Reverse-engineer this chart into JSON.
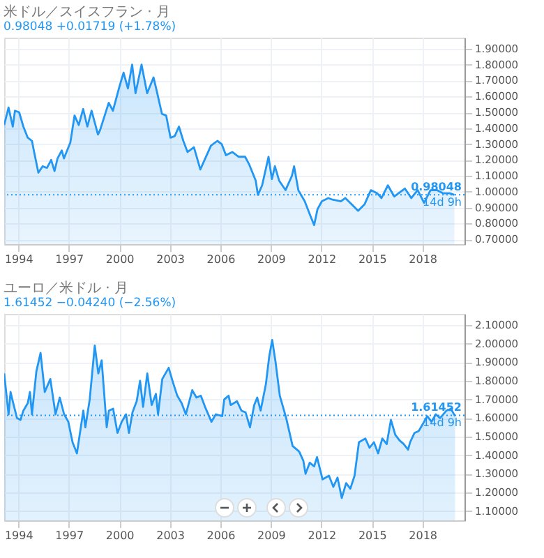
{
  "chart_data": [
    {
      "type": "area",
      "title": "米ドル／スイスフラン · 月",
      "subtitle": "0.98048 +0.01719 (+1.78%)",
      "annotations": [
        "14d 9h"
      ],
      "x": [
        1993.16,
        1993.42,
        1993.67,
        1993.8,
        1994.05,
        1994.3,
        1994.56,
        1994.81,
        1994.94,
        1995.19,
        1995.44,
        1995.7,
        1995.95,
        1996.15,
        1996.33,
        1996.58,
        1996.71,
        1997.09,
        1997.34,
        1997.59,
        1997.85,
        1998.1,
        1998.35,
        1998.73,
        1998.86,
        1999.37,
        1999.62,
        2000.0,
        2000.25,
        2000.51,
        2000.76,
        2000.96,
        2001.32,
        2001.65,
        2002.03,
        2002.23,
        2002.53,
        2002.78,
        2003.04,
        2003.29,
        2003.54,
        2003.8,
        2004.05,
        2004.43,
        2004.81,
        2005.06,
        2005.44,
        2005.82,
        2006.08,
        2006.33,
        2006.71,
        2007.09,
        2007.47,
        2007.72,
        2008.1,
        2008.23,
        2008.48,
        2008.86,
        2009.06,
        2009.24,
        2009.49,
        2009.87,
        2010.25,
        2010.38,
        2010.63,
        2011.01,
        2011.34,
        2011.57,
        2011.77,
        2012.03,
        2012.41,
        2012.66,
        2013.16,
        2013.42,
        2013.8,
        2014.18,
        2014.56,
        2014.94,
        2015.32,
        2015.57,
        2015.95,
        2016.33,
        2016.58,
        2016.96,
        2017.34,
        2017.72,
        2018.1,
        2018.48,
        2018.86,
        2019.24,
        2019.62,
        2019.9
      ],
      "series": [
        {
          "color": "#2196f3",
          "values": [
            1.42,
            1.53,
            1.41,
            1.51,
            1.5,
            1.41,
            1.34,
            1.32,
            1.25,
            1.12,
            1.16,
            1.15,
            1.2,
            1.13,
            1.21,
            1.26,
            1.21,
            1.31,
            1.48,
            1.42,
            1.52,
            1.41,
            1.51,
            1.36,
            1.39,
            1.56,
            1.51,
            1.66,
            1.75,
            1.65,
            1.8,
            1.62,
            1.8,
            1.62,
            1.72,
            1.63,
            1.49,
            1.48,
            1.34,
            1.35,
            1.41,
            1.32,
            1.25,
            1.28,
            1.14,
            1.2,
            1.29,
            1.32,
            1.3,
            1.23,
            1.25,
            1.22,
            1.22,
            1.17,
            1.07,
            0.98,
            1.04,
            1.22,
            1.08,
            1.16,
            1.07,
            1.01,
            1.1,
            1.16,
            1.01,
            0.94,
            0.85,
            0.79,
            0.89,
            0.94,
            0.96,
            0.95,
            0.94,
            0.96,
            0.92,
            0.88,
            0.92,
            1.01,
            0.99,
            0.96,
            1.04,
            0.97,
            0.99,
            1.02,
            0.96,
            1.01,
            0.93,
            1.01,
            1.01,
            0.99,
            0.99,
            0.98
          ]
        }
      ],
      "ref_lines": [
        {
          "axis": "y",
          "value": 0.98048,
          "label": "0.98048",
          "color": "#2196f3",
          "line_style": "dotted"
        }
      ],
      "xlim": [
        1993.16,
        2020.5
      ],
      "xticks": [
        1994,
        1997,
        2000,
        2003,
        2006,
        2009,
        2012,
        2015,
        2018
      ],
      "ylim": [
        0.67,
        1.97
      ],
      "yticks": [
        {
          "value": 0.7,
          "label": "0.70000"
        },
        {
          "value": 0.8,
          "label": "0.80000"
        },
        {
          "value": 0.9,
          "label": "0.90000"
        },
        {
          "value": 1.0,
          "label": "1.00000"
        },
        {
          "value": 1.1,
          "label": "1.10000"
        },
        {
          "value": 1.2,
          "label": "1.20000"
        },
        {
          "value": 1.3,
          "label": "1.30000"
        },
        {
          "value": 1.4,
          "label": "1.40000"
        },
        {
          "value": 1.5,
          "label": "1.50000"
        },
        {
          "value": 1.6,
          "label": "1.60000"
        },
        {
          "value": 1.7,
          "label": "1.70000"
        },
        {
          "value": 1.8,
          "label": "1.80000"
        },
        {
          "value": 1.9,
          "label": "1.90000"
        }
      ],
      "grid": true
    },
    {
      "type": "area",
      "title": "ユーロ／米ドル · 月",
      "subtitle": "1.61452 −0.04240 (−2.56%)",
      "annotations": [
        "14d 9h"
      ],
      "x": [
        1993.16,
        1993.42,
        1993.54,
        1993.67,
        1993.92,
        1994.13,
        1994.3,
        1994.56,
        1994.69,
        1994.81,
        1995.07,
        1995.32,
        1995.57,
        1995.9,
        1996.21,
        1996.46,
        1996.72,
        1996.97,
        1997.22,
        1997.48,
        1997.86,
        1997.98,
        1998.24,
        1998.54,
        1998.75,
        1998.95,
        1999.25,
        1999.38,
        1999.63,
        1999.89,
        2000.14,
        2000.4,
        2000.57,
        2000.78,
        2001.03,
        2001.23,
        2001.41,
        2001.66,
        2001.92,
        2002.17,
        2002.3,
        2002.55,
        2002.93,
        2003.19,
        2003.44,
        2003.7,
        2003.95,
        2004.33,
        2004.58,
        2004.84,
        2005.09,
        2005.47,
        2005.73,
        2006.11,
        2006.23,
        2006.49,
        2006.61,
        2006.99,
        2007.25,
        2007.5,
        2007.76,
        2008.01,
        2008.19,
        2008.39,
        2008.7,
        2008.9,
        2009.08,
        2009.28,
        2009.53,
        2009.91,
        2010.29,
        2010.68,
        2010.93,
        2011.06,
        2011.31,
        2011.57,
        2011.74,
        2012.07,
        2012.45,
        2012.71,
        2012.96,
        2013.21,
        2013.47,
        2013.72,
        2013.97,
        2014.23,
        2014.61,
        2014.86,
        2015.12,
        2015.37,
        2015.62,
        2015.88,
        2016.13,
        2016.39,
        2016.64,
        2016.89,
        2017.15,
        2017.27,
        2017.53,
        2017.78,
        2018.04,
        2018.29,
        2018.54,
        2018.8,
        2019.05,
        2019.43,
        2019.69,
        2019.94
      ],
      "series": [
        {
          "color": "#2196f3",
          "values": [
            1.84,
            1.62,
            1.74,
            1.69,
            1.6,
            1.59,
            1.64,
            1.68,
            1.74,
            1.62,
            1.85,
            1.95,
            1.74,
            1.81,
            1.62,
            1.71,
            1.62,
            1.58,
            1.47,
            1.41,
            1.64,
            1.55,
            1.7,
            1.99,
            1.84,
            1.91,
            1.55,
            1.64,
            1.65,
            1.52,
            1.58,
            1.62,
            1.52,
            1.63,
            1.69,
            1.8,
            1.66,
            1.84,
            1.67,
            1.73,
            1.62,
            1.81,
            1.87,
            1.79,
            1.72,
            1.68,
            1.62,
            1.75,
            1.71,
            1.72,
            1.66,
            1.58,
            1.62,
            1.61,
            1.7,
            1.72,
            1.67,
            1.69,
            1.64,
            1.63,
            1.55,
            1.67,
            1.71,
            1.64,
            1.78,
            1.93,
            2.02,
            1.9,
            1.72,
            1.6,
            1.45,
            1.42,
            1.37,
            1.3,
            1.36,
            1.34,
            1.39,
            1.27,
            1.29,
            1.23,
            1.28,
            1.17,
            1.25,
            1.22,
            1.29,
            1.47,
            1.49,
            1.44,
            1.47,
            1.41,
            1.49,
            1.46,
            1.59,
            1.51,
            1.48,
            1.46,
            1.43,
            1.47,
            1.52,
            1.53,
            1.57,
            1.61,
            1.58,
            1.62,
            1.6,
            1.64,
            1.65,
            1.61
          ]
        }
      ],
      "ref_lines": [
        {
          "axis": "y",
          "value": 1.61452,
          "label": "1.61452",
          "color": "#2196f3",
          "line_style": "dotted"
        }
      ],
      "xlim": [
        1993.16,
        2020.5
      ],
      "xticks": [
        1994,
        1997,
        2000,
        2003,
        2006,
        2009,
        2012,
        2015,
        2018
      ],
      "ylim": [
        1.05,
        2.16
      ],
      "yticks": [
        {
          "value": 1.1,
          "label": "1.10000"
        },
        {
          "value": 1.2,
          "label": "1.20000"
        },
        {
          "value": 1.3,
          "label": "1.30000"
        },
        {
          "value": 1.4,
          "label": "1.40000"
        },
        {
          "value": 1.5,
          "label": "1.50000"
        },
        {
          "value": 1.6,
          "label": "1.60000"
        },
        {
          "value": 1.7,
          "label": "1.70000"
        },
        {
          "value": 1.8,
          "label": "1.80000"
        },
        {
          "value": 1.9,
          "label": "1.90000"
        },
        {
          "value": 2.0,
          "label": "2.00000"
        },
        {
          "value": 2.1,
          "label": "2.10000"
        }
      ],
      "grid": true
    }
  ]
}
